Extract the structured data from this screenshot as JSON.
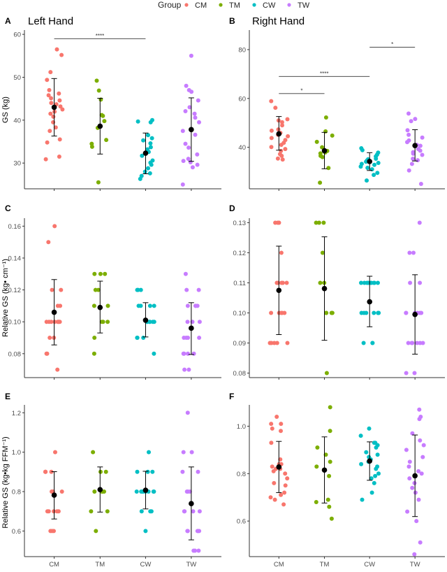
{
  "legend": {
    "title": "Group",
    "items": [
      {
        "label": "CM",
        "color": "#F8766D"
      },
      {
        "label": "TM",
        "color": "#7CAE00"
      },
      {
        "label": "CW",
        "color": "#00BFC4"
      },
      {
        "label": "TW",
        "color": "#C77CFF"
      }
    ]
  },
  "chart_data": [
    {
      "panel": "A",
      "type": "scatter",
      "title": "Left Hand",
      "ylabel": "GS (kg)",
      "categories": [
        "CM",
        "TM",
        "CW",
        "TW"
      ],
      "ylim": [
        24,
        61
      ],
      "yticks": [
        30,
        40,
        50,
        60
      ],
      "means": [
        43.0,
        38.6,
        32.3,
        37.8
      ],
      "sd_low": [
        36.3,
        32.1,
        27.5,
        30.4
      ],
      "sd_high": [
        49.7,
        45.1,
        37.0,
        45.2
      ],
      "points": [
        [
          56.5,
          55.2,
          51.2,
          49.4,
          47.0,
          46.2,
          45.8,
          45.1,
          44.6,
          44.0,
          43.7,
          43.2,
          42.5,
          42.0,
          41.5,
          40.8,
          39.5,
          38.3,
          37.5,
          35.5,
          34.8,
          31.5,
          30.9
        ],
        [
          49.2,
          46.9,
          44.8,
          41.2,
          41.0,
          39.8,
          38.2,
          35.4,
          34.5,
          33.8,
          25.5
        ],
        [
          40.0,
          39.7,
          39.5,
          36.5,
          35.8,
          35.3,
          34.6,
          33.7,
          33.2,
          32.6,
          31.7,
          30.6,
          30.1,
          29.6,
          28.8,
          28.0,
          27.6,
          27.0,
          26.3
        ],
        [
          55.0,
          48.0,
          47.0,
          46.6,
          44.6,
          43.0,
          42.1,
          41.5,
          40.6,
          39.5,
          37.5,
          36.6,
          34.5,
          33.6,
          32.0,
          31.0,
          30.5,
          30.2,
          29.6,
          29.0,
          25.0
        ]
      ],
      "significance": [
        {
          "from": "CM",
          "to": "CW",
          "label": "****",
          "y": 59.0
        }
      ]
    },
    {
      "panel": "B",
      "type": "scatter",
      "title": "Right Hand",
      "ylabel": "",
      "categories": [
        "CM",
        "TM",
        "CW",
        "TW"
      ],
      "ylim": [
        23,
        88
      ],
      "yticks": [
        40,
        60,
        80
      ],
      "means": [
        45.5,
        38.6,
        34.2,
        40.7
      ],
      "sd_low": [
        38.8,
        31.2,
        30.5,
        34.4
      ],
      "sd_high": [
        52.6,
        46.1,
        37.8,
        47.2
      ],
      "points": [
        [
          58.9,
          56.2,
          51.5,
          51.0,
          50.3,
          49.0,
          47.3,
          46.8,
          45.9,
          45.1,
          44.5,
          43.8,
          43.0,
          41.8,
          41.0,
          40.1,
          39.3,
          38.5,
          37.2,
          36.5,
          35.4,
          35.0
        ],
        [
          52.2,
          46.5,
          44.8,
          42.2,
          40.0,
          38.5,
          37.9,
          37.5,
          36.5,
          36.0,
          31.5,
          25.5
        ],
        [
          39.6,
          38.8,
          37.8,
          37.0,
          36.3,
          35.3,
          35.1,
          34.6,
          34.1,
          33.6,
          33.2,
          32.8,
          32.1,
          31.6,
          31.0,
          29.5,
          28.7,
          26.4
        ],
        [
          53.8,
          51.6,
          50.7,
          47.0,
          45.1,
          44.0,
          42.8,
          42.1,
          41.0,
          40.6,
          39.3,
          38.6,
          38.0,
          37.4,
          36.9,
          35.3,
          34.7,
          33.2,
          30.5,
          25.0
        ]
      ],
      "significance": [
        {
          "from": "CM",
          "to": "TM",
          "label": "*",
          "y": 62.0
        },
        {
          "from": "CM",
          "to": "CW",
          "label": "****",
          "y": 69.0
        },
        {
          "from": "CW",
          "to": "TW",
          "label": "*",
          "y": 81.0
        }
      ]
    },
    {
      "panel": "C",
      "type": "scatter",
      "title": "",
      "ylabel": "Relative GS (kg•  cm⁻¹)",
      "categories": [
        "CM",
        "TM",
        "CW",
        "TW"
      ],
      "ylim": [
        0.065,
        0.165
      ],
      "yticks": [
        0.08,
        0.1,
        0.12,
        0.14,
        0.16
      ],
      "tick_labels": [
        "0.08",
        "0.10",
        "0.12",
        "0.14",
        "0.16"
      ],
      "means": [
        0.106,
        0.109,
        0.101,
        0.096
      ],
      "sd_low": [
        0.0855,
        0.093,
        0.0905,
        0.0795
      ],
      "sd_high": [
        0.1265,
        0.1255,
        0.112,
        0.112
      ],
      "points": [
        [
          0.16,
          0.15,
          0.12,
          0.12,
          0.11,
          0.11,
          0.1,
          0.1,
          0.1,
          0.1,
          0.1,
          0.1,
          0.1,
          0.1,
          0.09,
          0.09,
          0.08,
          0.08,
          0.07
        ],
        [
          0.13,
          0.13,
          0.13,
          0.12,
          0.12,
          0.11,
          0.11,
          0.1,
          0.1,
          0.1,
          0.09,
          0.08
        ],
        [
          0.12,
          0.12,
          0.12,
          0.11,
          0.11,
          0.11,
          0.11,
          0.1,
          0.1,
          0.1,
          0.1,
          0.1,
          0.1,
          0.09,
          0.09,
          0.09,
          0.08
        ],
        [
          0.13,
          0.12,
          0.12,
          0.11,
          0.11,
          0.11,
          0.11,
          0.1,
          0.1,
          0.1,
          0.09,
          0.09,
          0.09,
          0.09,
          0.08,
          0.08,
          0.08,
          0.08,
          0.07,
          0.07
        ]
      ]
    },
    {
      "panel": "D",
      "type": "scatter",
      "title": "",
      "ylabel": "",
      "categories": [
        "CM",
        "TM",
        "CW",
        "TW"
      ],
      "ylim": [
        0.0785,
        0.1315
      ],
      "yticks": [
        0.08,
        0.09,
        0.1,
        0.11,
        0.12,
        0.13
      ],
      "tick_labels": [
        "0.08",
        "0.09",
        "0.10",
        "0.11",
        "0.12",
        "0.13"
      ],
      "means": [
        0.1075,
        0.1081,
        0.1037,
        0.0995
      ],
      "sd_low": [
        0.0928,
        0.0909,
        0.0954,
        0.0863
      ],
      "sd_high": [
        0.1222,
        0.1253,
        0.1122,
        0.1127
      ],
      "points": [
        [
          0.13,
          0.13,
          0.13,
          0.13,
          0.12,
          0.11,
          0.11,
          0.11,
          0.11,
          0.11,
          0.1,
          0.1,
          0.1,
          0.1,
          0.1,
          0.09,
          0.09,
          0.09,
          0.09,
          0.09
        ],
        [
          0.13,
          0.13,
          0.13,
          0.12,
          0.11,
          0.11,
          0.1,
          0.1,
          0.1,
          0.1,
          0.08
        ],
        [
          0.11,
          0.11,
          0.11,
          0.11,
          0.11,
          0.11,
          0.11,
          0.11,
          0.11,
          0.1,
          0.1,
          0.1,
          0.1,
          0.1,
          0.1,
          0.1,
          0.09,
          0.09,
          0.09
        ],
        [
          0.13,
          0.12,
          0.12,
          0.11,
          0.11,
          0.1,
          0.1,
          0.1,
          0.1,
          0.1,
          0.1,
          0.09,
          0.09,
          0.09,
          0.09,
          0.09,
          0.09,
          0.08,
          0.08
        ]
      ]
    },
    {
      "panel": "E",
      "type": "scatter",
      "title": "",
      "ylabel": "Relative GS (kg•kg  FFM⁻¹)",
      "categories": [
        "CM",
        "TM",
        "CW",
        "TW"
      ],
      "ylim": [
        0.47,
        1.24
      ],
      "yticks": [
        0.6,
        0.8,
        1.0,
        1.2
      ],
      "tick_labels": [
        "0.6",
        "0.8",
        "1.0",
        "1.2"
      ],
      "means": [
        0.782,
        0.81,
        0.807,
        0.739
      ],
      "sd_low": [
        0.661,
        0.696,
        0.712,
        0.555
      ],
      "sd_high": [
        0.901,
        0.925,
        0.903,
        0.925
      ],
      "points": [
        [
          1.0,
          0.9,
          0.9,
          0.9,
          0.9,
          0.8,
          0.8,
          0.8,
          0.8,
          0.7,
          0.7,
          0.7,
          0.7,
          0.7,
          0.6,
          0.6,
          0.6
        ],
        [
          1.0,
          0.9,
          0.9,
          0.8,
          0.8,
          0.8,
          0.8,
          0.7,
          0.7,
          0.6
        ],
        [
          1.0,
          0.9,
          0.9,
          0.9,
          0.8,
          0.8,
          0.8,
          0.8,
          0.8,
          0.8,
          0.8,
          0.8,
          0.7,
          0.7,
          0.7,
          0.6
        ],
        [
          1.2,
          1.0,
          1.0,
          0.9,
          0.9,
          0.8,
          0.8,
          0.8,
          0.7,
          0.7,
          0.7,
          0.7,
          0.6,
          0.6,
          0.6,
          0.6,
          0.6,
          0.5,
          0.5,
          0.5
        ]
      ]
    },
    {
      "panel": "F",
      "type": "scatter",
      "title": "",
      "ylabel": "",
      "categories": [
        "CM",
        "TM",
        "CW",
        "TW"
      ],
      "ylim": [
        0.45,
        1.09
      ],
      "yticks": [
        0.6,
        0.8,
        1.0
      ],
      "tick_labels": [
        "0.6",
        "0.8",
        "1.0"
      ],
      "means": [
        0.828,
        0.815,
        0.853,
        0.791
      ],
      "sd_low": [
        0.72,
        0.676,
        0.772,
        0.619
      ],
      "sd_high": [
        0.936,
        0.955,
        0.934,
        0.963
      ],
      "points": [
        [
          1.04,
          1.01,
          1.01,
          0.99,
          0.98,
          0.93,
          0.86,
          0.84,
          0.84,
          0.83,
          0.82,
          0.82,
          0.81,
          0.8,
          0.78,
          0.76,
          0.75,
          0.72,
          0.71,
          0.7,
          0.69,
          0.67
        ],
        [
          1.08,
          0.98,
          0.91,
          0.88,
          0.85,
          0.83,
          0.79,
          0.69,
          0.68,
          0.66,
          0.61
        ],
        [
          0.99,
          0.96,
          0.93,
          0.93,
          0.92,
          0.91,
          0.89,
          0.88,
          0.87,
          0.86,
          0.85,
          0.84,
          0.83,
          0.82,
          0.8,
          0.79,
          0.78,
          0.76,
          0.72,
          0.69
        ],
        [
          1.07,
          1.04,
          1.03,
          0.97,
          0.94,
          0.92,
          0.9,
          0.87,
          0.85,
          0.83,
          0.81,
          0.8,
          0.78,
          0.76,
          0.74,
          0.72,
          0.69,
          0.64,
          0.6,
          0.51,
          0.46
        ]
      ]
    }
  ]
}
